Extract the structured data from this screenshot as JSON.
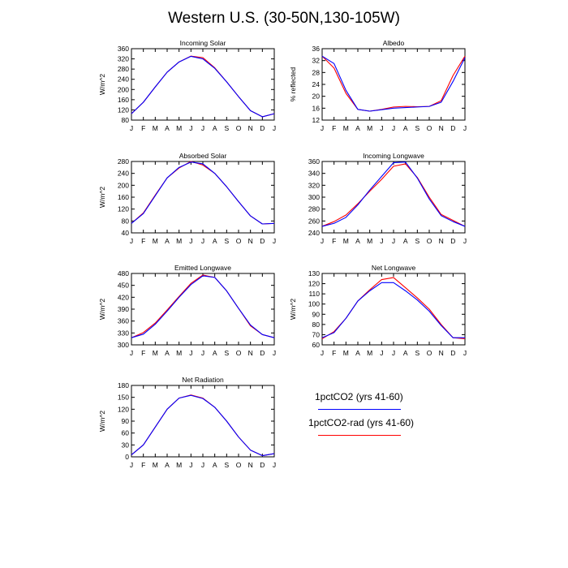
{
  "figure": {
    "title": "Western U.S. (30-50N,130-105W)"
  },
  "colors": {
    "series_a": "#0000ff",
    "series_b": "#ff0000",
    "axis": "#000000"
  },
  "legend": {
    "entries": [
      {
        "label": "1pctCO2 (yrs 41-60)",
        "color": "#0000ff"
      },
      {
        "label": "1pctCO2-rad (yrs 41-60)",
        "color": "#ff0000"
      }
    ]
  },
  "chart_data": [
    {
      "type": "line",
      "title": "Incoming Solar",
      "ylabel": "W/m^2",
      "categories": [
        "J",
        "F",
        "M",
        "A",
        "M",
        "J",
        "J",
        "A",
        "S",
        "O",
        "N",
        "D",
        "J"
      ],
      "ylim": [
        80,
        360
      ],
      "yticks": [
        80,
        120,
        160,
        200,
        240,
        280,
        320,
        360
      ],
      "series": [
        {
          "name": "1pctCO2 (yrs 41-60)",
          "color": "#0000ff",
          "values": [
            105,
            150,
            210,
            268,
            308,
            330,
            320,
            283,
            230,
            172,
            117,
            93,
            105
          ]
        },
        {
          "name": "1pctCO2-rad (yrs 41-60)",
          "color": "#ff0000",
          "values": [
            105,
            150,
            210,
            268,
            308,
            331,
            325,
            285,
            230,
            172,
            117,
            93,
            105
          ]
        }
      ]
    },
    {
      "type": "line",
      "title": "Albedo",
      "ylabel": "% reflected",
      "categories": [
        "J",
        "F",
        "M",
        "A",
        "M",
        "J",
        "J",
        "A",
        "S",
        "O",
        "N",
        "D",
        "J"
      ],
      "ylim": [
        12,
        36
      ],
      "yticks": [
        12,
        16,
        20,
        24,
        28,
        32,
        36
      ],
      "series": [
        {
          "name": "1pctCO2 (yrs 41-60)",
          "color": "#0000ff",
          "values": [
            33.5,
            31,
            22,
            15.6,
            15,
            15.5,
            16,
            16.2,
            16.4,
            16.6,
            18,
            25,
            33
          ]
        },
        {
          "name": "1pctCO2-rad (yrs 41-60)",
          "color": "#ff0000",
          "values": [
            33.5,
            29.5,
            21,
            15.6,
            15,
            15.6,
            16.4,
            16.6,
            16.5,
            16.6,
            18.5,
            27,
            33.5
          ]
        }
      ]
    },
    {
      "type": "line",
      "title": "Absorbed Solar",
      "ylabel": "W/m^2",
      "categories": [
        "J",
        "F",
        "M",
        "A",
        "M",
        "J",
        "J",
        "A",
        "S",
        "O",
        "N",
        "D",
        "J"
      ],
      "ylim": [
        40,
        280
      ],
      "yticks": [
        40,
        80,
        120,
        160,
        200,
        240,
        280
      ],
      "series": [
        {
          "name": "1pctCO2 (yrs 41-60)",
          "color": "#0000ff",
          "values": [
            72,
            105,
            165,
            225,
            260,
            278,
            272,
            240,
            195,
            145,
            97,
            70,
            72
          ]
        },
        {
          "name": "1pctCO2-rad (yrs 41-60)",
          "color": "#ff0000",
          "values": [
            72,
            107,
            167,
            225,
            258,
            280,
            268,
            240,
            195,
            145,
            97,
            70,
            72
          ]
        }
      ]
    },
    {
      "type": "line",
      "title": "Incoming Longwave",
      "ylabel": "",
      "categories": [
        "J",
        "F",
        "M",
        "A",
        "M",
        "J",
        "J",
        "A",
        "S",
        "O",
        "N",
        "D",
        "J"
      ],
      "ylim": [
        240,
        360
      ],
      "yticks": [
        240,
        260,
        280,
        300,
        320,
        340,
        360
      ],
      "series": [
        {
          "name": "1pctCO2 (yrs 41-60)",
          "color": "#0000ff",
          "values": [
            251,
            256,
            266,
            287,
            312,
            335,
            358,
            359,
            332,
            297,
            269,
            259,
            251
          ]
        },
        {
          "name": "1pctCO2-rad (yrs 41-60)",
          "color": "#ff0000",
          "values": [
            251,
            259,
            270,
            289,
            310,
            330,
            352,
            356,
            333,
            300,
            271,
            261,
            251
          ]
        }
      ]
    },
    {
      "type": "line",
      "title": "Emitted Longwave",
      "ylabel": "W/m^2",
      "categories": [
        "J",
        "F",
        "M",
        "A",
        "M",
        "J",
        "J",
        "A",
        "S",
        "O",
        "N",
        "D",
        "J"
      ],
      "ylim": [
        300,
        480
      ],
      "yticks": [
        300,
        330,
        360,
        390,
        420,
        450,
        480
      ],
      "series": [
        {
          "name": "1pctCO2 (yrs 41-60)",
          "color": "#0000ff",
          "values": [
            318,
            327,
            352,
            385,
            420,
            452,
            474,
            470,
            436,
            392,
            350,
            326,
            318
          ]
        },
        {
          "name": "1pctCO2-rad (yrs 41-60)",
          "color": "#ff0000",
          "values": [
            318,
            331,
            355,
            388,
            422,
            455,
            476,
            470,
            436,
            392,
            348,
            326,
            318
          ]
        }
      ]
    },
    {
      "type": "line",
      "title": "Net Longwave",
      "ylabel": "W/m^2",
      "categories": [
        "J",
        "F",
        "M",
        "A",
        "M",
        "J",
        "J",
        "A",
        "S",
        "O",
        "N",
        "D",
        "J"
      ],
      "ylim": [
        60,
        130
      ],
      "yticks": [
        60,
        70,
        80,
        90,
        100,
        110,
        120,
        130
      ],
      "series": [
        {
          "name": "1pctCO2 (yrs 41-60)",
          "color": "#0000ff",
          "values": [
            67,
            72,
            86,
            103,
            113,
            121,
            121,
            113,
            104,
            93,
            79,
            67,
            67
          ]
        },
        {
          "name": "1pctCO2-rad (yrs 41-60)",
          "color": "#ff0000",
          "values": [
            66,
            73,
            86,
            103,
            114,
            124,
            126,
            116,
            106,
            95,
            80,
            67,
            66
          ]
        }
      ]
    },
    {
      "type": "line",
      "title": "Net Radiation",
      "ylabel": "W/m^2",
      "categories": [
        "J",
        "F",
        "M",
        "A",
        "M",
        "J",
        "J",
        "A",
        "S",
        "O",
        "N",
        "D",
        "J"
      ],
      "ylim": [
        0,
        180
      ],
      "yticks": [
        0,
        30,
        60,
        90,
        120,
        150,
        180
      ],
      "series": [
        {
          "name": "1pctCO2 (yrs 41-60)",
          "color": "#0000ff",
          "values": [
            5,
            30,
            75,
            120,
            148,
            155,
            147,
            125,
            90,
            50,
            17,
            3,
            8
          ]
        },
        {
          "name": "1pctCO2-rad (yrs 41-60)",
          "color": "#ff0000",
          "values": [
            5,
            30,
            75,
            120,
            148,
            156,
            148,
            125,
            90,
            50,
            17,
            3,
            8
          ]
        }
      ]
    }
  ]
}
